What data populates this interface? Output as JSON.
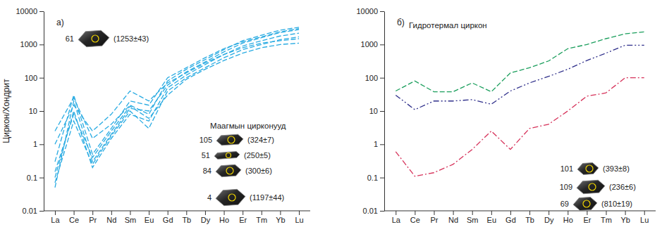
{
  "chart_data": [
    {
      "type": "line",
      "title": "а)",
      "subtitle": "Маагмын цирконууд",
      "ylabel": "Циркон/Хондрит",
      "log": "y",
      "grid": false,
      "categories": [
        "La",
        "Ce",
        "Pr",
        "Nd",
        "Sm",
        "Eu",
        "Gd",
        "Tb",
        "Dy",
        "Ho",
        "Er",
        "Tm",
        "Yb",
        "Lu"
      ],
      "ylim": [
        0.01,
        10000
      ],
      "yticks": [
        0.01,
        0.1,
        1,
        10,
        100,
        1000,
        10000
      ],
      "series": [
        {
          "color": "#29abe2",
          "line_style": "dashed",
          "values": [
            2.5,
            25,
            1.5,
            4,
            15,
            8,
            80,
            180,
            350,
            700,
            1300,
            1900,
            2700,
            3300
          ]
        },
        {
          "color": "#29abe2",
          "line_style": "dashed",
          "values": [
            0.05,
            20,
            0.3,
            2,
            12,
            10,
            60,
            150,
            300,
            600,
            1100,
            1600,
            2300,
            2800
          ]
        },
        {
          "color": "#29abe2",
          "line_style": "dashed",
          "values": [
            0.1,
            10,
            0.2,
            1.5,
            8,
            5,
            50,
            120,
            250,
            500,
            900,
            1300,
            1800,
            2200
          ]
        },
        {
          "color": "#29abe2",
          "line_style": "dashed",
          "values": [
            0.3,
            30,
            0.5,
            3,
            20,
            15,
            100,
            200,
            400,
            750,
            1200,
            1700,
            2400,
            3000
          ]
        },
        {
          "color": "#29abe2",
          "line_style": "dashed",
          "values": [
            0.07,
            5,
            0.25,
            1.8,
            10,
            3,
            40,
            100,
            200,
            400,
            700,
            1000,
            1400,
            1700
          ]
        },
        {
          "color": "#29abe2",
          "line_style": "dashed",
          "values": [
            1,
            15,
            2.5,
            8,
            40,
            20,
            70,
            140,
            280,
            500,
            800,
            1100,
            1300,
            1500
          ]
        },
        {
          "color": "#29abe2",
          "line_style": "dashed",
          "values": [
            0.15,
            8,
            0.4,
            2.5,
            14,
            6,
            30,
            90,
            180,
            330,
            550,
            800,
            1000,
            1100
          ]
        }
      ],
      "annotations": [
        {
          "label": "61",
          "age": "(1253±43)"
        },
        {
          "label": "105",
          "age": "(324±7)"
        },
        {
          "label": "51",
          "age": "(250±5)"
        },
        {
          "label": "84",
          "age": "(300±6)"
        },
        {
          "label": "4",
          "age": "(1197±44)"
        }
      ]
    },
    {
      "type": "line",
      "title": "б)",
      "subtitle": "Гидротермал циркон",
      "log": "y",
      "grid": false,
      "categories": [
        "La",
        "Ce",
        "Pr",
        "Nd",
        "Sm",
        "Eu",
        "Gd",
        "Tb",
        "Dy",
        "Ho",
        "Er",
        "Tm",
        "Yb",
        "Lu"
      ],
      "ylim": [
        0.01,
        10000
      ],
      "yticks": [
        0.01,
        0.1,
        1,
        10,
        100,
        1000,
        10000
      ],
      "series": [
        {
          "color": "#1a9e5c",
          "line_style": "dashed",
          "values": [
            40,
            80,
            38,
            38,
            70,
            38,
            140,
            200,
            320,
            750,
            1000,
            1500,
            2100,
            2400
          ]
        },
        {
          "color": "#2e2e8a",
          "line_style": "dashdotdot",
          "values": [
            30,
            11,
            20,
            20,
            22,
            16,
            40,
            70,
            110,
            180,
            330,
            550,
            950,
            950
          ]
        },
        {
          "color": "#d6325a",
          "line_style": "dashdot",
          "values": [
            0.6,
            0.11,
            0.14,
            0.25,
            0.7,
            2.5,
            0.7,
            3,
            4,
            10,
            28,
            35,
            100,
            100
          ]
        }
      ],
      "annotations": [
        {
          "label": "101",
          "age": "(393±8)"
        },
        {
          "label": "109",
          "age": "(236±6)"
        },
        {
          "label": "69",
          "age": "(810±19)"
        }
      ]
    }
  ]
}
